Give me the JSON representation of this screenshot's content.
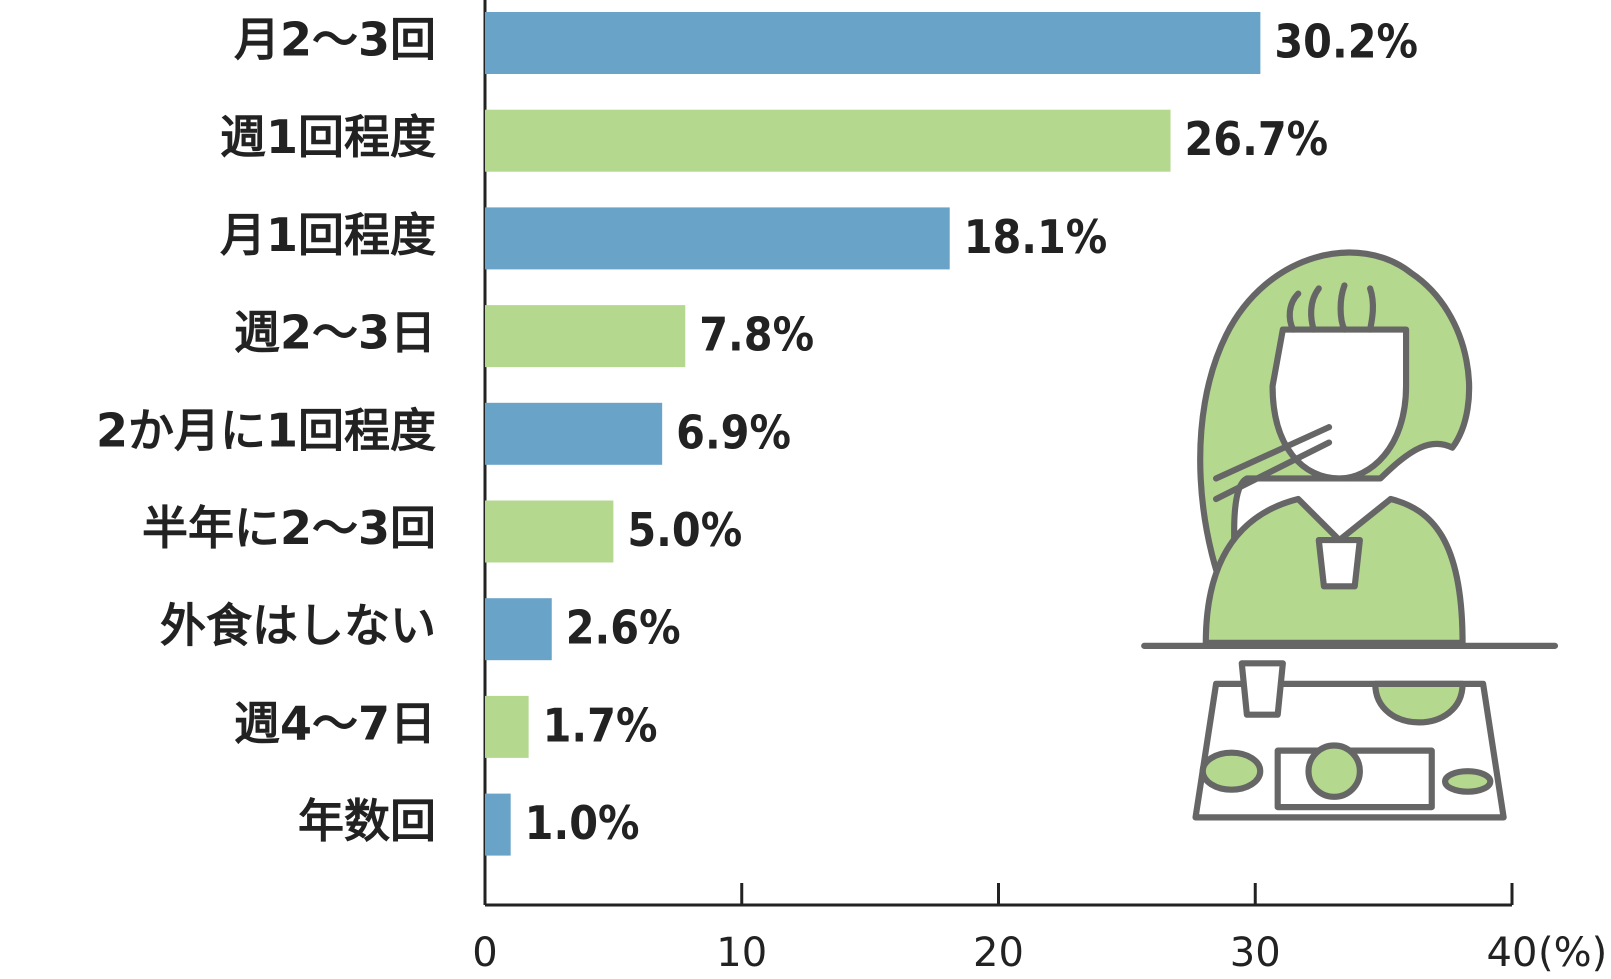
{
  "chart_data": {
    "type": "bar",
    "orientation": "horizontal",
    "categories": [
      "月2～3回",
      "週1回程度",
      "月1回程度",
      "週2～3日",
      "2か月に1回程度",
      "半年に2～3回",
      "外食はしない",
      "週4～7日",
      "年数回"
    ],
    "values": [
      30.2,
      26.7,
      18.1,
      7.8,
      6.9,
      5.0,
      2.6,
      1.7,
      1.0
    ],
    "value_labels": [
      "30.2%",
      "26.7%",
      "18.1%",
      "7.8%",
      "6.9%",
      "5.0%",
      "2.6%",
      "1.7%",
      "1.0%"
    ],
    "colors": [
      "#6aa3c8",
      "#b5d88f",
      "#6aa3c8",
      "#b5d88f",
      "#6aa3c8",
      "#b5d88f",
      "#6aa3c8",
      "#b5d88f",
      "#6aa3c8"
    ],
    "xlabel": "(%)",
    "xlim": [
      0,
      40
    ],
    "xticks": [
      0,
      10,
      20,
      30,
      40
    ],
    "grid": false
  }
}
